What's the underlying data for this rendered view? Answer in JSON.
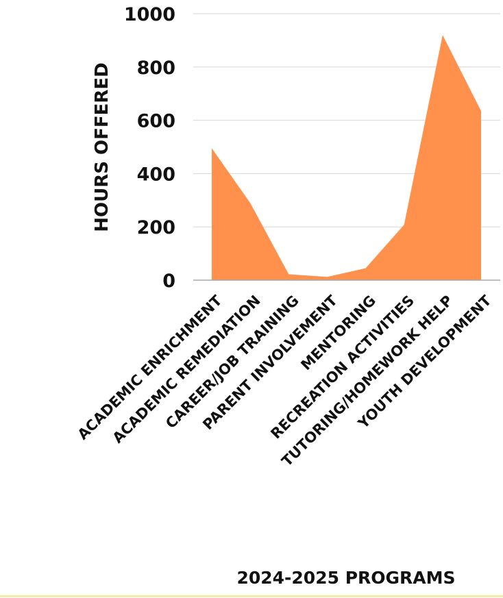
{
  "chart_data": {
    "type": "area",
    "categories": [
      "ACADEMIC ENRICHMENT",
      "ACADEMIC REMEDIATION",
      "CAREER/JOB TRAINING",
      "PARENT INVOLVEMENT",
      "MENTORING",
      "RECREATION ACTIVITIES",
      "TUTORING/HOMEWORK HELP",
      "YOUTH DEVELOPMENT"
    ],
    "values": [
      495,
      290,
      22,
      12,
      45,
      208,
      920,
      635
    ],
    "yticks": [
      "0",
      "200",
      "400",
      "600",
      "800",
      "1000"
    ],
    "ylim": [
      0,
      1000
    ],
    "ylabel": "HOURS OFFERED",
    "xlabel": "2024-2025 PROGRAMS",
    "grid": true,
    "fill_color": "#ff914d"
  }
}
